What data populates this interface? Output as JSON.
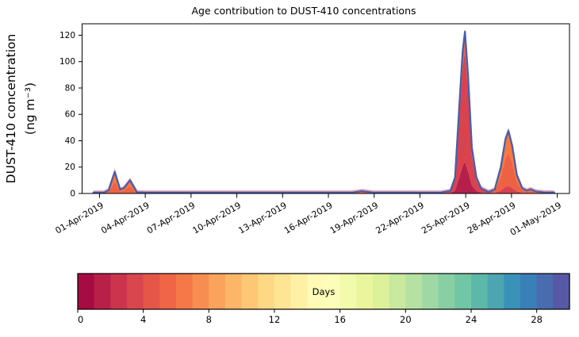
{
  "chart_data": {
    "type": "area",
    "title": "Age contribution to DUST-410 concentrations",
    "ylabel_line1": "DUST-410 concentration",
    "ylabel_line2": "(ng m⁻³)",
    "x_axis": {
      "tick_labels": [
        "01-Apr-2019",
        "04-Apr-2019",
        "07-Apr-2019",
        "10-Apr-2019",
        "13-Apr-2019",
        "16-Apr-2019",
        "19-Apr-2019",
        "22-Apr-2019",
        "25-Apr-2019",
        "28-Apr-2019",
        "01-May-2019"
      ],
      "tick_days": [
        0,
        3,
        6,
        9,
        12,
        15,
        18,
        21,
        24,
        27,
        30
      ],
      "range_days": [
        -1.14,
        30.8
      ]
    },
    "y_axis": {
      "ticks": [
        0,
        20,
        40,
        60,
        80,
        100,
        120
      ],
      "range": [
        0,
        128.7
      ]
    },
    "x_days": [
      -0.4,
      0.3,
      0.6,
      1.0,
      1.35,
      1.6,
      2.0,
      2.45,
      3.0,
      6.0,
      10.0,
      14.0,
      16.5,
      17.2,
      18.0,
      20.0,
      22.4,
      23.0,
      23.3,
      23.6,
      23.8,
      23.95,
      24.15,
      24.4,
      24.7,
      25.0,
      25.5,
      25.9,
      26.3,
      26.6,
      26.8,
      27.05,
      27.35,
      27.7,
      28.0,
      28.25,
      28.6,
      29.1,
      29.8
    ],
    "layers": [
      {
        "name": "layer-1",
        "color": "#b4204b",
        "values": [
          0,
          0,
          0,
          0,
          0,
          0,
          0,
          0,
          0,
          0,
          0,
          0,
          0,
          0,
          0,
          0,
          0,
          0.3,
          2.2,
          13,
          21,
          24,
          17,
          6,
          2,
          0.6,
          0.1,
          0,
          0,
          0,
          0,
          0,
          0,
          0,
          0,
          0,
          0,
          0,
          0
        ]
      },
      {
        "name": "layer-2",
        "color": "#d8434e",
        "values": [
          0,
          0,
          0,
          0,
          0,
          0,
          0,
          0,
          0,
          0,
          0,
          0,
          0,
          0,
          0,
          0,
          0,
          1.2,
          8.3,
          48,
          74,
          85,
          61,
          23,
          7.6,
          2.6,
          0.7,
          0.4,
          2.4,
          5,
          5.7,
          4.3,
          1.7,
          0.5,
          0.2,
          0.3,
          0,
          0,
          0
        ]
      },
      {
        "name": "layer-3",
        "color": "#ee6244",
        "values": [
          0.35,
          0.35,
          1.4,
          9.0,
          1.7,
          2.2,
          5.5,
          0.55,
          0.35,
          0.35,
          0.35,
          0.35,
          0.35,
          1.1,
          0.35,
          0.35,
          0.4,
          0.5,
          1.5,
          9,
          13,
          13.7,
          12,
          6,
          2.4,
          0.8,
          0.4,
          1.6,
          10.6,
          21.5,
          25.2,
          19,
          7.4,
          2.1,
          1.2,
          1.7,
          0.8,
          0.5,
          0.35
        ]
      },
      {
        "name": "layer-4",
        "color": "#f5793f",
        "values": [
          0.35,
          0.35,
          1.1,
          7.4,
          1.3,
          1.8,
          4.5,
          0.45,
          0.35,
          0.35,
          0.35,
          0.35,
          0.35,
          0.7,
          0.35,
          0.35,
          0.4,
          0,
          0,
          0,
          0,
          0,
          0,
          0,
          0,
          0,
          0,
          1.0,
          7.0,
          14.5,
          16.6,
          12.7,
          4.9,
          1.4,
          0.8,
          1.2,
          0.7,
          0.4,
          0.35
        ]
      }
    ],
    "total_line_color": "#4c5da8",
    "top_edge_color": "#e9a2ad",
    "peak_annotations": [
      {
        "date": "02-Apr-2019",
        "value": 16.4
      },
      {
        "date": "03-Apr-2019",
        "value": 10.0
      },
      {
        "date": "18-Apr-2019",
        "value": 1.8
      },
      {
        "date": "25-Apr-2019",
        "value": 122.7
      },
      {
        "date": "28-Apr-2019",
        "value": 47.5
      },
      {
        "date": "29-Apr-2019",
        "value": 3.2
      }
    ],
    "colorbar": {
      "label": "Days",
      "vmin": 0,
      "vmax": 30,
      "ticks": [
        0,
        4,
        8,
        12,
        16,
        20,
        24,
        28
      ],
      "colors": [
        "#a70b44",
        "#b92048",
        "#cc344d",
        "#da464d",
        "#e55649",
        "#ef6545",
        "#f57848",
        "#f88d52",
        "#fba35c",
        "#fdb668",
        "#fdc776",
        "#fed884",
        "#fee594",
        "#fef0a5",
        "#fffab6",
        "#fbfdb8",
        "#f2faab",
        "#eaf69e",
        "#dcf19a",
        "#c8e99e",
        "#b5e1a2",
        "#a0d8a4",
        "#88cfa4",
        "#71c6a5",
        "#5db8a9",
        "#4ca5b1",
        "#3b92b9",
        "#397fb8",
        "#486caf",
        "#5759a6"
      ]
    }
  }
}
